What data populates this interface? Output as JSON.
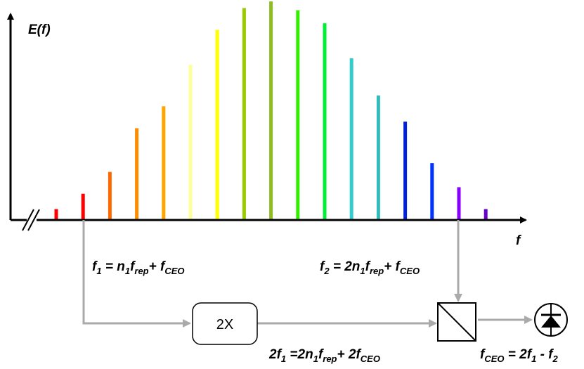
{
  "axes": {
    "y_label": "E(f)",
    "x_label": "f"
  },
  "comb": {
    "colors": [
      "#ff0000",
      "#ff0000",
      "#ff6a00",
      "#ff8c00",
      "#ffa500",
      "#ffc000",
      "#ffff99",
      "#ffff00",
      "#99cc00",
      "#8fbc1f",
      "#66dd00",
      "#00ee00",
      "#00dd11",
      "#33cccc",
      "#33bbbb",
      "#0033cc",
      "#0033ff",
      "#8800ff",
      "#6600cc"
    ],
    "amplitudes": [
      0.05,
      0.12,
      0.22,
      0.42,
      0.52,
      0.71,
      0.87,
      0.97,
      1.0,
      0.96,
      0.9,
      0.74,
      0.57,
      0.45,
      0.26,
      0.15,
      0.05
    ]
  },
  "labels": {
    "f1": {
      "base": "f",
      "sub": "1",
      "eq": " = n",
      "eq_sub": "1",
      "frep": "f",
      "frep_sub": "rep",
      "plus": "+ f",
      "ceo_sub": "CEO"
    },
    "f2": {
      "base": "f",
      "sub": "2",
      "eq": " = 2n",
      "eq_sub": "1",
      "frep": "f",
      "frep_sub": "rep",
      "plus": "+ f",
      "ceo_sub": "CEO"
    },
    "double": {
      "pre": "2f",
      "sub": "1",
      "eq": " =2n",
      "eq_sub": "1",
      "frep": "f",
      "frep_sub": "rep",
      "plus": "+ 2f",
      "ceo_sub": "CEO"
    },
    "fceo": {
      "base": "f",
      "sub": "CEO",
      "eq": " = 2f",
      "eq_sub": "1",
      "minus": " - f",
      "minus_sub": "2"
    }
  },
  "doubler_box": {
    "label": "2X"
  },
  "colors": {
    "axis": "#000000",
    "signal_path": "#aaaaaa"
  }
}
